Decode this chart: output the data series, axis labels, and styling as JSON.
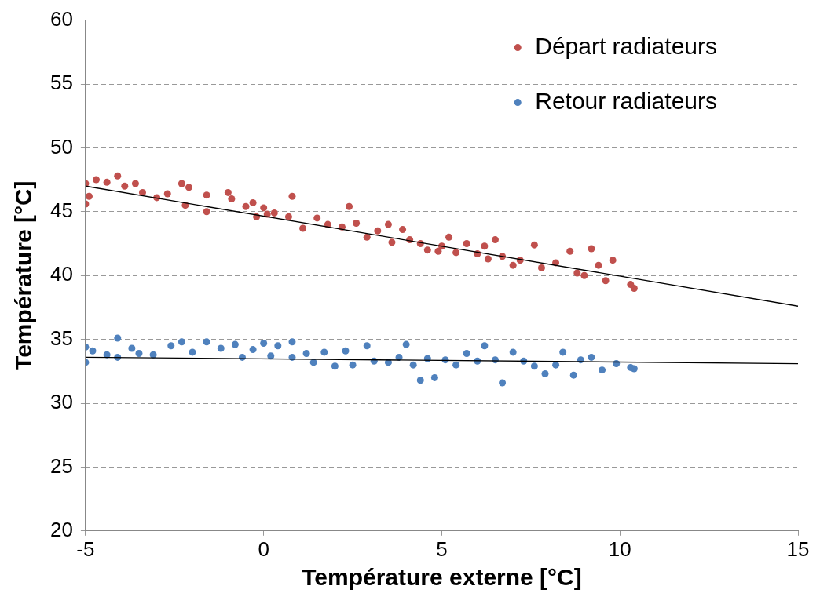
{
  "chart_data": {
    "type": "scatter",
    "xlabel": "Température externe [°C]",
    "ylabel": "Température [°C]",
    "xlim": [
      -5,
      15
    ],
    "xticks": [
      -5,
      0,
      5,
      10,
      15
    ],
    "ylim": [
      20,
      60
    ],
    "yticks": [
      20,
      25,
      30,
      35,
      40,
      45,
      50,
      55,
      60
    ],
    "grid": "y",
    "legend": "top right",
    "marker": "circle",
    "series": [
      {
        "name": "Départ radiateurs",
        "color": "#c0504d",
        "x": [
          -5,
          -5,
          -4.9,
          -4.7,
          -4.4,
          -4.1,
          -3.9,
          -3.6,
          -3.4,
          -3,
          -2.7,
          -2.3,
          -2.1,
          -2.2,
          -1.6,
          -1.6,
          -1,
          -0.9,
          -0.5,
          -0.3,
          0,
          0.1,
          -0.2,
          0.3,
          0.8,
          0.7,
          1.1,
          1.5,
          1.8,
          2.2,
          2.4,
          2.6,
          2.9,
          3.2,
          3.5,
          3.6,
          3.9,
          4.1,
          4.4,
          4.6,
          4.9,
          5.2,
          5.4,
          5.7,
          6,
          6.2,
          6.5,
          6.7,
          7,
          7.2,
          7.6,
          7.8,
          8.2,
          8.6,
          8.8,
          9.2,
          9.4,
          9.6,
          9.8,
          10.3,
          10.4,
          9,
          6.3,
          5
        ],
        "values": [
          47.2,
          45.6,
          46.2,
          47.5,
          47.3,
          47.8,
          47,
          47.2,
          46.5,
          46.1,
          46.4,
          47.2,
          46.9,
          45.5,
          46.3,
          45,
          46.5,
          46,
          45.4,
          45.7,
          45.3,
          44.8,
          44.6,
          44.9,
          46.2,
          44.6,
          43.7,
          44.5,
          44,
          43.8,
          45.4,
          44.1,
          43,
          43.5,
          44,
          42.6,
          43.6,
          42.8,
          42.5,
          42,
          41.9,
          43,
          41.8,
          42.5,
          41.7,
          42.3,
          42.8,
          41.5,
          40.8,
          41.2,
          42.4,
          40.6,
          41,
          41.9,
          40.2,
          42.1,
          40.8,
          39.6,
          41.2,
          39.3,
          39,
          40,
          41.3,
          42.3
        ]
      },
      {
        "name": "Retour radiateurs",
        "color": "#4f81bd",
        "x": [
          -5,
          -5,
          -4.8,
          -4.4,
          -4.1,
          -4.1,
          -3.7,
          -3.5,
          -3.1,
          -2.6,
          -2.3,
          -2,
          -1.6,
          -1.2,
          -0.8,
          -0.6,
          -0.3,
          0,
          0.2,
          0.4,
          0.8,
          0.8,
          1.2,
          1.4,
          1.7,
          2,
          2.3,
          2.5,
          2.9,
          3.1,
          3.5,
          3.8,
          4,
          4.2,
          4.4,
          4.6,
          4.8,
          5.1,
          5.4,
          5.7,
          6,
          6.2,
          6.5,
          6.7,
          7,
          7.3,
          7.6,
          7.9,
          8.2,
          8.4,
          8.7,
          8.9,
          9.2,
          9.5,
          9.9,
          10.3,
          10.4
        ],
        "values": [
          34.4,
          33.2,
          34.1,
          33.8,
          35.1,
          33.6,
          34.3,
          33.9,
          33.8,
          34.5,
          34.8,
          34,
          34.8,
          34.3,
          34.6,
          33.6,
          34.2,
          34.7,
          33.7,
          34.5,
          34.8,
          33.6,
          33.9,
          33.2,
          34,
          32.9,
          34.1,
          33,
          34.5,
          33.3,
          33.2,
          33.6,
          34.6,
          33,
          31.8,
          33.5,
          32,
          33.4,
          33,
          33.9,
          33.3,
          34.5,
          33.4,
          31.6,
          34,
          33.3,
          32.9,
          32.3,
          33,
          34,
          32.2,
          33.4,
          33.6,
          32.6,
          33.1,
          32.8,
          32.7
        ]
      },
      {
        "type": "line",
        "marker": "none",
        "color": "#000000",
        "x": [
          -5,
          15
        ],
        "values": [
          47,
          37.6
        ]
      },
      {
        "type": "line",
        "marker": "none",
        "color": "#000000",
        "x": [
          -5,
          15
        ],
        "values": [
          33.6,
          33.1
        ]
      }
    ]
  }
}
